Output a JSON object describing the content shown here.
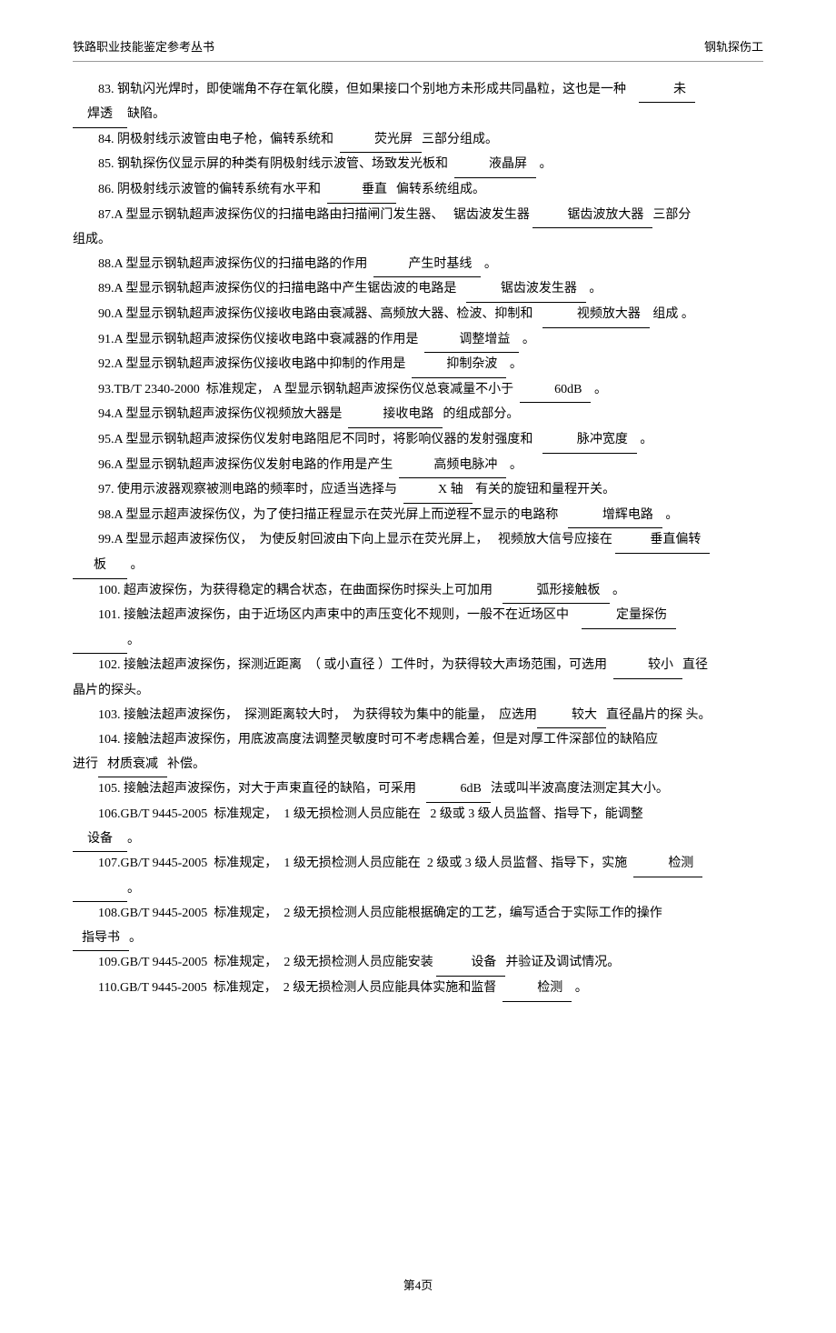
{
  "header": {
    "left": "铁路职业技能鉴定参考丛书",
    "right": "钢轨探伤工"
  },
  "footer": "第4页",
  "q83": {
    "t1": "83. 钢轨闪光焊时，即使端角不存在氧化膜，但如果接口个别地方未形成共同晶粒，这也是一种",
    "a": "未",
    "t2": "焊透",
    "t3": "缺陷。"
  },
  "q84": {
    "t1": "84. 阴极射线示波管由电子枪，偏转系统和",
    "a": "荧光屏",
    "t2": "三部分组成。"
  },
  "q85": {
    "t1": "85. 钢轨探伤仪显示屏的种类有阴极射线示波管、场致发光板和",
    "a": "液晶屏",
    "t2": "。"
  },
  "q86": {
    "t1": "86. 阴极射线示波管的偏转系统有水平和",
    "a": "垂直",
    "t2": "偏转系统组成。"
  },
  "q87": {
    "t1": "87.A 型显示钢轨超声波探伤仪的扫描电路由扫描闸门发生器、",
    "t2": "锯齿波发生器",
    "a": "锯齿波放大器",
    "t3": "三部分",
    "t4": "组成。"
  },
  "q88": {
    "t1": "88.A 型显示钢轨超声波探伤仪的扫描电路的作用",
    "a": "产生时基线",
    "t2": "。"
  },
  "q89": {
    "t1": "89.A 型显示钢轨超声波探伤仪的扫描电路中产生锯齿波的电路是",
    "a": "锯齿波发生器",
    "t2": "。"
  },
  "q90": {
    "t1": "90.A 型显示钢轨超声波探伤仪接收电路由衰减器、高频放大器、检波、抑制和",
    "a": "视频放大器",
    "t2": "组成 。"
  },
  "q91": {
    "t1": "91.A 型显示钢轨超声波探伤仪接收电路中衰减器的作用是",
    "a": "调整增益",
    "t2": "。"
  },
  "q92": {
    "t1": "92.A 型显示钢轨超声波探伤仪接收电路中抑制的作用是",
    "a": "抑制杂波",
    "t2": "。"
  },
  "q93": {
    "t1": "93.TB/T 2340-2000",
    "t2": "标准规定，",
    "t3": "A 型显示钢轨超声波探伤仪总衰减量不小于",
    "a": "60dB",
    "t4": "。"
  },
  "q94": {
    "t1": "94.A 型显示钢轨超声波探伤仪视频放大器是",
    "a": "接收电路",
    "t2": "的组成部分。"
  },
  "q95": {
    "t1": "95.A 型显示钢轨超声波探伤仪发射电路阻尼不同时，将影响仪器的发射强度和",
    "a": "脉冲宽度",
    "t2": "。"
  },
  "q96": {
    "t1": "96.A 型显示钢轨超声波探伤仪发射电路的作用是产生",
    "a": "高频电脉冲",
    "t2": "。"
  },
  "q97": {
    "t1": "97. 使用示波器观察被测电路的频率时，应适当选择与",
    "a": "X 轴",
    "t2": "有关的旋钮和量程开关。"
  },
  "q98": {
    "t1": "98.A 型显示超声波探伤仪，为了使扫描正程显示在荧光屏上而逆程不显示的电路称",
    "a": "增辉电路",
    "t2": "。"
  },
  "q99": {
    "t1": "99.A 型显示超声波探伤仪，",
    "t2": "为使反射回波由下向上显示在荧光屏上，",
    "t3": "视频放大信号应接在",
    "a": "垂直偏转",
    "t4": "板",
    "t5": "。"
  },
  "q100": {
    "t1": "100. 超声波探伤，为获得稳定的耦合状态，在曲面探伤时探头上可加用",
    "a": "弧形接触板",
    "t2": "。"
  },
  "q101": {
    "t1": "101. 接触法超声波探伤，由于近场区内声束中的声压变化不规则，一般不在近场区中",
    "a": "定量探伤",
    "t2": "。"
  },
  "q102": {
    "t1": "102. 接触法超声波探伤，探测近距离",
    "t2": "（ 或小直径 ）工件时，为获得较大声场范围，可选用",
    "a": "较小",
    "t3": "直径",
    "t4": "晶片的探头。"
  },
  "q103": {
    "t1": "103. 接触法超声波探伤，",
    "t2": "探测距离较大时，",
    "t3": "为获得较为集中的能量，",
    "t4": "应选用",
    "a": "较大",
    "t5": "直径晶片的探",
    "t6": "头。"
  },
  "q104": {
    "t1": "104. 接触法超声波探伤，用底波高度法调整灵敏度时可不考虑耦合差，但是对厚工件深部位的缺陷应",
    "t2": "进行",
    "a": "材质衰减",
    "t3": "补偿。"
  },
  "q105": {
    "t1": "105. 接触法超声波探伤，对大于声束直径的缺陷，可采用",
    "a": "6dB",
    "t2": "法或叫半波高度法测定其大小。"
  },
  "q106": {
    "t1": "106.GB/T 9445-2005",
    "t2": "标准规定，",
    "t3": "1 级无损检测人员应能在",
    "t4": "2 级或 3 级人员监督、指导下，能调整",
    "a": "设备",
    "t5": "。"
  },
  "q107": {
    "t1": "107.GB/T 9445-2005",
    "t2": "标准规定，",
    "t3": "1 级无损检测人员应能在",
    "t4": "2 级或 3 级人员监督、指导下，实施",
    "a": "检测",
    "t5": "。"
  },
  "q108": {
    "t1": "108.GB/T 9445-2005",
    "t2": "标准规定，",
    "t3": "2 级无损检测人员应能根据确定的工艺，编写适合于实际工作的操作",
    "a": "指导书",
    "t4": "。"
  },
  "q109": {
    "t1": "109.GB/T 9445-2005",
    "t2": "标准规定，",
    "t3": "2 级无损检测人员应能安装",
    "a": "设备",
    "t4": "并验证及调试情况。"
  },
  "q110": {
    "t1": "110.GB/T 9445-2005",
    "t2": "标准规定，",
    "t3": "2 级无损检测人员应能具体实施和监督",
    "a": "检测",
    "t4": "。"
  }
}
